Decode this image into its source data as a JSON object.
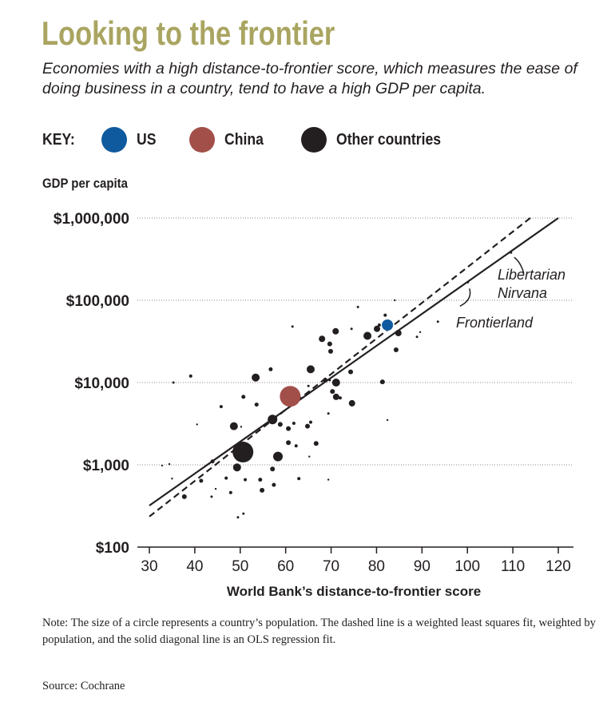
{
  "header": {
    "title": "Looking to the frontier",
    "subtitle": "Economies with a high distance-to-frontier score, which measures the ease of doing business in a country, tend to have a high GDP per capita."
  },
  "key": {
    "label": "KEY:",
    "items": [
      {
        "label": "US",
        "color": "#0f5a9e"
      },
      {
        "label": "China",
        "color": "#a24f4a"
      },
      {
        "label": "Other countries",
        "color": "#231f20"
      }
    ]
  },
  "chart_data": {
    "type": "scatter",
    "ylabel": "GDP per capita",
    "xlabel": "World Bank’s distance-to-frontier score",
    "xlim": [
      30,
      120
    ],
    "ylim": [
      100,
      1000000
    ],
    "yscale": "log",
    "xticks": [
      "30",
      "40",
      "50",
      "60",
      "70",
      "80",
      "90",
      "100",
      "110",
      "120"
    ],
    "yticks": [
      {
        "value": 100,
        "label": "$100"
      },
      {
        "value": 1000,
        "label": "$1,000"
      },
      {
        "value": 10000,
        "label": "$10,000"
      },
      {
        "value": 100000,
        "label": "$100,000"
      },
      {
        "value": 1000000,
        "label": "$1,000,000"
      }
    ],
    "grid": "horizontal dotted",
    "point_size_meaning": "population",
    "highlight": [
      {
        "label": "China",
        "x": 61,
        "y": 6800,
        "size": 13,
        "color": "#a24f4a"
      },
      {
        "label": "US",
        "x": 82.4,
        "y": 50000,
        "size": 7,
        "color": "#0f5a9e"
      }
    ],
    "points": [
      [
        50.6,
        1430,
        13
      ],
      [
        53.4,
        11500,
        5
      ],
      [
        48.6,
        2950,
        5
      ],
      [
        57.1,
        3560,
        6
      ],
      [
        49.3,
        930,
        5
      ],
      [
        58.3,
        1260,
        6
      ],
      [
        37.7,
        410,
        3
      ],
      [
        54.8,
        490,
        3
      ],
      [
        60.6,
        2760,
        3
      ],
      [
        60.6,
        1860,
        3
      ],
      [
        58.8,
        3100,
        3
      ],
      [
        57.1,
        890,
        3
      ],
      [
        50.7,
        6700,
        2.5
      ],
      [
        45.8,
        5100,
        2
      ],
      [
        53.6,
        5400,
        2.5
      ],
      [
        56.7,
        14500,
        2.5
      ],
      [
        39.1,
        12000,
        2
      ],
      [
        41.4,
        640,
        2.5
      ],
      [
        51.1,
        660,
        2
      ],
      [
        54.4,
        660,
        2.5
      ],
      [
        57.4,
        570,
        2.5
      ],
      [
        46.9,
        690,
        2
      ],
      [
        62.9,
        680,
        2
      ],
      [
        49.5,
        230,
        1.5
      ],
      [
        43.9,
        1100,
        2.5
      ],
      [
        47.9,
        460,
        2
      ],
      [
        35.3,
        10000,
        1.5
      ],
      [
        61.5,
        48000,
        1.5
      ],
      [
        40.5,
        3100,
        1.2
      ],
      [
        50.7,
        255,
        1.5
      ],
      [
        32.8,
        980,
        1.2
      ],
      [
        34.4,
        1020,
        1.2
      ],
      [
        35,
        680,
        1.2
      ],
      [
        43.7,
        410,
        1.5
      ],
      [
        44.6,
        510,
        1.2
      ],
      [
        50.2,
        2900,
        1.2
      ],
      [
        78,
        37000,
        5
      ],
      [
        80.1,
        45000,
        4
      ],
      [
        80.6,
        50000,
        2
      ],
      [
        81.9,
        66000,
        2
      ],
      [
        84.8,
        40000,
        4
      ],
      [
        84.3,
        25000,
        3
      ],
      [
        71,
        42000,
        4
      ],
      [
        68,
        34000,
        4
      ],
      [
        69.7,
        29500,
        3
      ],
      [
        69.9,
        24000,
        3
      ],
      [
        65.5,
        14500,
        5
      ],
      [
        74.3,
        13500,
        3
      ],
      [
        71.1,
        10000,
        5
      ],
      [
        68.7,
        10700,
        3
      ],
      [
        70.3,
        7800,
        3
      ],
      [
        71.1,
        6700,
        4
      ],
      [
        72,
        6500,
        2
      ],
      [
        74.6,
        5600,
        4
      ],
      [
        81.3,
        10200,
        3
      ],
      [
        64.8,
        2950,
        3
      ],
      [
        65.5,
        3300,
        2
      ],
      [
        61.8,
        3200,
        2
      ],
      [
        66.7,
        1820,
        3
      ],
      [
        62.3,
        1700,
        2
      ],
      [
        69.4,
        4200,
        1.5
      ],
      [
        75.9,
        83000,
        1.5
      ],
      [
        74.5,
        45000,
        1.5
      ],
      [
        93.5,
        55000,
        1.5
      ],
      [
        88.9,
        36000,
        1.5
      ],
      [
        89.6,
        41000,
        1.2
      ],
      [
        82.4,
        3500,
        1.2
      ],
      [
        84,
        100000,
        1.2
      ],
      [
        65.2,
        1260,
        1.2
      ],
      [
        69.4,
        660,
        1.2
      ],
      [
        65,
        9100,
        1.5
      ],
      [
        69.7,
        10700,
        1.5
      ],
      [
        109.6,
        380000,
        1.5
      ],
      [
        100.1,
        166000,
        1.5
      ]
    ],
    "lines": [
      {
        "style": "solid",
        "fit": "OLS regression",
        "from": [
          30,
          320
        ],
        "to": [
          120,
          1000000
        ]
      },
      {
        "style": "dashed",
        "fit": "weighted least squares",
        "from": [
          30,
          235
        ],
        "to": [
          114.5,
          1070000
        ]
      }
    ],
    "annotations": [
      {
        "text": "Libertarian Nirvana",
        "x": 109.6,
        "y": 380000
      },
      {
        "text": "Frontierland",
        "x": 100.1,
        "y": 166000
      }
    ]
  },
  "footer": {
    "note": "Note: The size of a circle represents a country’s population. The dashed line is a weighted least squares fit, weighted by population, and the solid diagonal line is an OLS regression fit.",
    "source": "Source: Cochrane"
  }
}
